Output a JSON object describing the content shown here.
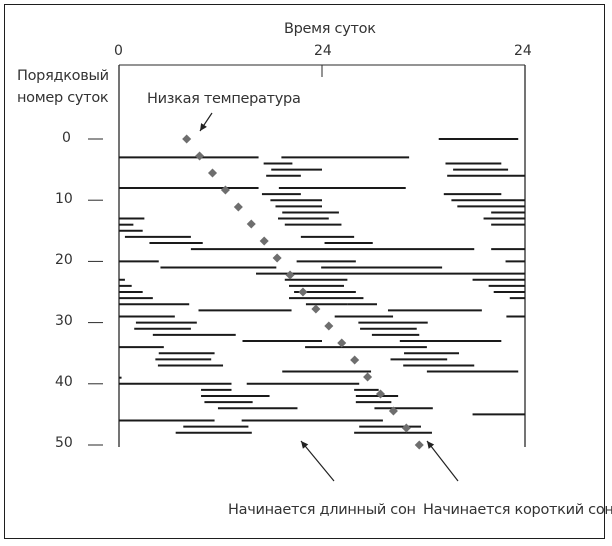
{
  "chart_data": {
    "type": "raster-actogram",
    "title": "",
    "xlabel": "Время суток",
    "ylabel": "Порядковый номер суток",
    "x_ticks": [
      "0",
      "24",
      "24"
    ],
    "x_range_hours": [
      0,
      48
    ],
    "y_ticks": [
      "0",
      "10",
      "20",
      "30",
      "40",
      "50"
    ],
    "y_range_days": [
      -4,
      50
    ],
    "annotations": [
      {
        "text": "Низкая температура",
        "points_to": "start of dotted low-temperature line"
      },
      {
        "text": "Начинается длинный сон",
        "points_to": "long-sleep start region (~day 47, ~hour 21)"
      },
      {
        "text": "Начинается короткий сон",
        "points_to": "short-sleep start region (~day 48, ~hour 36)"
      }
    ],
    "low_temperature_line": {
      "style": "dotted",
      "from": {
        "day": 0,
        "hour": 8
      },
      "to": {
        "day": 50,
        "hour": 35.5
      }
    },
    "sleep_bars": [
      {
        "day": 0,
        "start": 37.8,
        "end": 47.2
      },
      {
        "day": 3,
        "start": 0,
        "end": 16.5
      },
      {
        "day": 3,
        "start": 19.2,
        "end": 34.3
      },
      {
        "day": 4,
        "start": 17.1,
        "end": 20.5
      },
      {
        "day": 4,
        "start": 38.6,
        "end": 45.2
      },
      {
        "day": 5,
        "start": 18.0,
        "end": 24.0
      },
      {
        "day": 5,
        "start": 39.5,
        "end": 46.0
      },
      {
        "day": 6,
        "start": 17.4,
        "end": 21.5
      },
      {
        "day": 6,
        "start": 38.8,
        "end": 48
      },
      {
        "day": 8,
        "start": 0,
        "end": 16.5
      },
      {
        "day": 8,
        "start": 18.9,
        "end": 33.9
      },
      {
        "day": 9,
        "start": 16.9,
        "end": 21.5
      },
      {
        "day": 9,
        "start": 38.4,
        "end": 45.2
      },
      {
        "day": 10,
        "start": 17.9,
        "end": 24.0
      },
      {
        "day": 10,
        "start": 39.3,
        "end": 48
      },
      {
        "day": 11,
        "start": 18.5,
        "end": 24.0
      },
      {
        "day": 11,
        "start": 40.0,
        "end": 48
      },
      {
        "day": 12,
        "start": 19.3,
        "end": 26.0
      },
      {
        "day": 12,
        "start": 44.0,
        "end": 48
      },
      {
        "day": 13,
        "start": 0,
        "end": 3.0
      },
      {
        "day": 13,
        "start": 18.8,
        "end": 24.8
      },
      {
        "day": 13,
        "start": 43.1,
        "end": 48
      },
      {
        "day": 14,
        "start": 0,
        "end": 1.7
      },
      {
        "day": 14,
        "start": 19.6,
        "end": 26.3
      },
      {
        "day": 14,
        "start": 44.0,
        "end": 48
      },
      {
        "day": 15,
        "start": 0,
        "end": 2.8
      },
      {
        "day": 16,
        "start": 0.7,
        "end": 8.5
      },
      {
        "day": 16,
        "start": 21.5,
        "end": 27.8
      },
      {
        "day": 17,
        "start": 3.6,
        "end": 9.9
      },
      {
        "day": 17,
        "start": 24.3,
        "end": 30.0
      },
      {
        "day": 18,
        "start": 8.5,
        "end": 42.0
      },
      {
        "day": 18,
        "start": 44.0,
        "end": 48
      },
      {
        "day": 20,
        "start": 0,
        "end": 4.7
      },
      {
        "day": 20,
        "start": 21.0,
        "end": 28.0
      },
      {
        "day": 20,
        "start": 45.7,
        "end": 48
      },
      {
        "day": 21,
        "start": 4.9,
        "end": 18.6
      },
      {
        "day": 21,
        "start": 23.9,
        "end": 38.2
      },
      {
        "day": 22,
        "start": 16.2,
        "end": 48
      },
      {
        "day": 23,
        "start": 0,
        "end": 0.7
      },
      {
        "day": 23,
        "start": 19.6,
        "end": 27.0
      },
      {
        "day": 23,
        "start": 41.8,
        "end": 48
      },
      {
        "day": 24,
        "start": 0,
        "end": 1.5
      },
      {
        "day": 24,
        "start": 20.1,
        "end": 26.6
      },
      {
        "day": 24,
        "start": 43.7,
        "end": 48
      },
      {
        "day": 25,
        "start": 0,
        "end": 2.8
      },
      {
        "day": 25,
        "start": 20.7,
        "end": 28.0
      },
      {
        "day": 25,
        "start": 44.3,
        "end": 48
      },
      {
        "day": 26,
        "start": 0,
        "end": 4.0
      },
      {
        "day": 26,
        "start": 20.1,
        "end": 28.9
      },
      {
        "day": 26,
        "start": 46.2,
        "end": 48
      },
      {
        "day": 27,
        "start": 0,
        "end": 8.3
      },
      {
        "day": 27,
        "start": 22.1,
        "end": 27.0
      },
      {
        "day": 27,
        "start": 27.0,
        "end": 30.5
      },
      {
        "day": 28,
        "start": 9.4,
        "end": 20.4
      },
      {
        "day": 28,
        "start": 31.8,
        "end": 42.9
      },
      {
        "day": 29,
        "start": 0,
        "end": 6.6
      },
      {
        "day": 29,
        "start": 25.5,
        "end": 32.4
      },
      {
        "day": 29,
        "start": 45.8,
        "end": 48
      },
      {
        "day": 30,
        "start": 2.0,
        "end": 9.2
      },
      {
        "day": 30,
        "start": 28.3,
        "end": 36.5
      },
      {
        "day": 31,
        "start": 1.8,
        "end": 8.5
      },
      {
        "day": 31,
        "start": 28.5,
        "end": 35.2
      },
      {
        "day": 32,
        "start": 4.0,
        "end": 13.8
      },
      {
        "day": 32,
        "start": 29.9,
        "end": 35.5
      },
      {
        "day": 33,
        "start": 14.6,
        "end": 24.0
      },
      {
        "day": 33,
        "start": 33.2,
        "end": 45.2
      },
      {
        "day": 34,
        "start": 0,
        "end": 5.3
      },
      {
        "day": 34,
        "start": 22.0,
        "end": 36.4
      },
      {
        "day": 35,
        "start": 4.7,
        "end": 11.3
      },
      {
        "day": 35,
        "start": 33.7,
        "end": 40.2
      },
      {
        "day": 36,
        "start": 4.3,
        "end": 10.9
      },
      {
        "day": 36,
        "start": 32.1,
        "end": 38.8
      },
      {
        "day": 37,
        "start": 4.6,
        "end": 12.3
      },
      {
        "day": 37,
        "start": 33.6,
        "end": 42.0
      },
      {
        "day": 38,
        "start": 19.3,
        "end": 29.8
      },
      {
        "day": 38,
        "start": 36.4,
        "end": 47.2
      },
      {
        "day": 39,
        "start": 0,
        "end": 0.3
      },
      {
        "day": 40,
        "start": 0,
        "end": 13.3
      },
      {
        "day": 40,
        "start": 15.1,
        "end": 28.4
      },
      {
        "day": 41,
        "start": 9.7,
        "end": 13.3
      },
      {
        "day": 41,
        "start": 27.8,
        "end": 30.7
      },
      {
        "day": 42,
        "start": 9.7,
        "end": 17.8
      },
      {
        "day": 42,
        "start": 28.0,
        "end": 33.0
      },
      {
        "day": 43,
        "start": 10.1,
        "end": 15.8
      },
      {
        "day": 43,
        "start": 28.0,
        "end": 32.2
      },
      {
        "day": 44,
        "start": 11.7,
        "end": 21.1
      },
      {
        "day": 44,
        "start": 30.2,
        "end": 37.1
      },
      {
        "day": 45,
        "start": 41.8,
        "end": 48
      },
      {
        "day": 46,
        "start": 0,
        "end": 11.3
      },
      {
        "day": 46,
        "start": 14.5,
        "end": 31.2
      },
      {
        "day": 47,
        "start": 7.6,
        "end": 15.3
      },
      {
        "day": 47,
        "start": 28.4,
        "end": 35.7
      },
      {
        "day": 48,
        "start": 6.7,
        "end": 15.7
      },
      {
        "day": 48,
        "start": 27.8,
        "end": 37.0
      }
    ]
  },
  "labels": {
    "x_title": "Время суток",
    "x_tick_0": "0",
    "x_tick_24a": "24",
    "x_tick_24b": "24",
    "y_title_line1": "Порядковый",
    "y_title_line2": "номер суток",
    "y_ticks": [
      "0",
      "10",
      "20",
      "30",
      "40",
      "50"
    ],
    "annotation_low_temp": "Низкая температура",
    "annotation_long_sleep": "Начинается длинный сон",
    "annotation_short_sleep": "Начинается короткий сон"
  },
  "colors": {
    "bars": "#1a1a1a",
    "dotted_line": "#6e6e6e",
    "text": "#333333",
    "axes": "#2a2a2a"
  }
}
